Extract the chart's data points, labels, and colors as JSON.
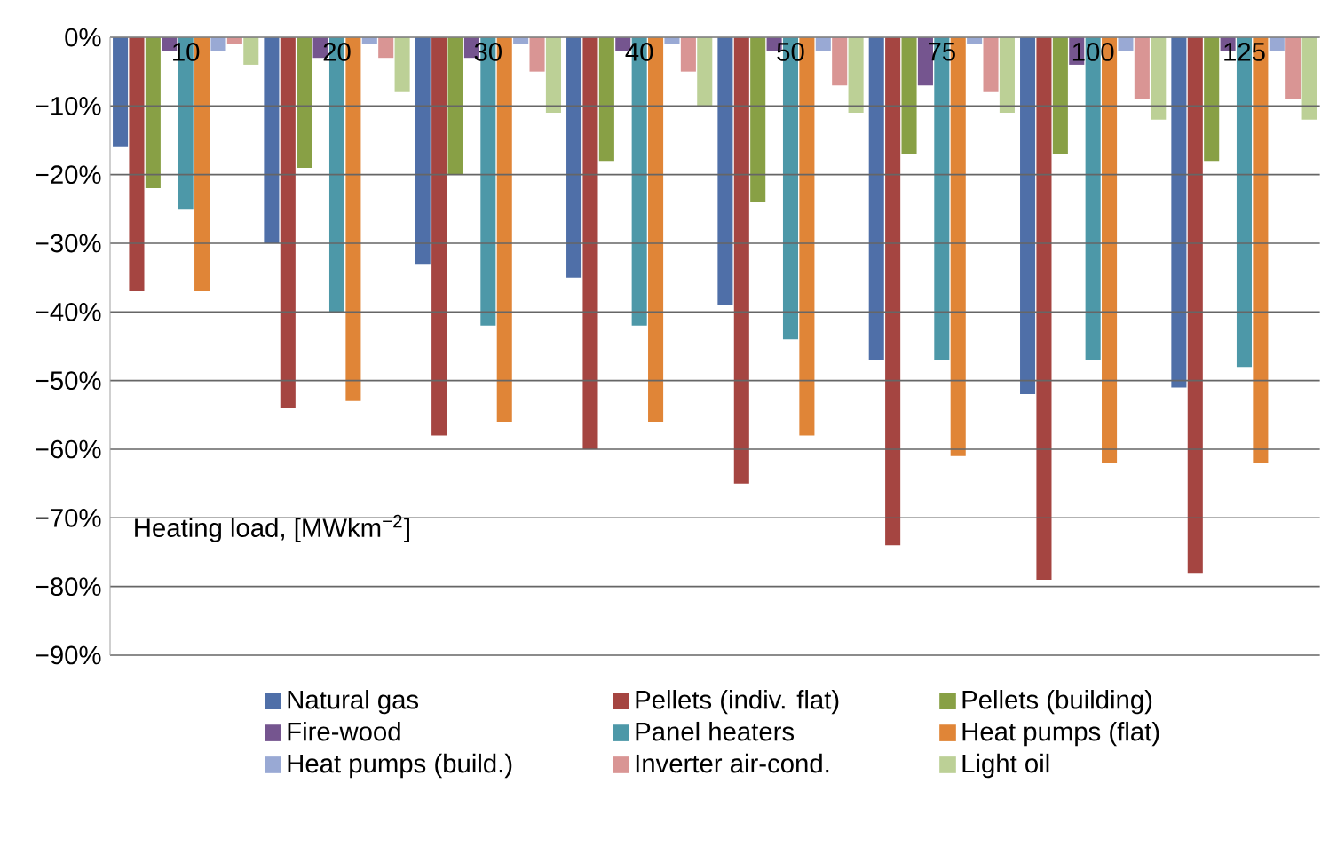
{
  "chart_data": {
    "type": "bar",
    "xlabel": "Heating load, [MWkm$^{−2}$]",
    "categories": [
      "10",
      "20",
      "30",
      "40",
      "50",
      "75",
      "100",
      "125"
    ],
    "series": [
      {
        "name": "Natural gas",
        "color": "#4f6fa8",
        "values": [
          -16,
          -30,
          -33,
          -35,
          -39,
          -47,
          -52,
          -51
        ]
      },
      {
        "name": "Pellets (indiv. flat)",
        "color": "#a54541",
        "values": [
          -37,
          -54,
          -58,
          -60,
          -65,
          -74,
          -79,
          -78
        ]
      },
      {
        "name": "Pellets (building)",
        "color": "#88a045",
        "values": [
          -22,
          -19,
          -20,
          -18,
          -24,
          -17,
          -17,
          -18
        ]
      },
      {
        "name": "Fire-wood",
        "color": "#75558f",
        "values": [
          -2,
          -3,
          -3,
          -2,
          -2,
          -7,
          -4,
          -2
        ]
      },
      {
        "name": "Panel heaters",
        "color": "#4d98a8",
        "values": [
          -25,
          -40,
          -42,
          -42,
          -44,
          -47,
          -47,
          -48
        ]
      },
      {
        "name": "Heat pumps (flat)",
        "color": "#e08537",
        "values": [
          -37,
          -53,
          -56,
          -56,
          -58,
          -61,
          -62,
          -62
        ]
      },
      {
        "name": "Heat pumps (build.)",
        "color": "#99a9d4",
        "values": [
          -2,
          -1,
          -1,
          -1,
          -2,
          -1,
          -2,
          -2
        ]
      },
      {
        "name": "Inverter air-cond.",
        "color": "#d99594",
        "values": [
          -1,
          -3,
          -5,
          -5,
          -7,
          -8,
          -9,
          -9
        ]
      },
      {
        "name": "Light oil",
        "color": "#bcd096",
        "values": [
          -4,
          -8,
          -11,
          -10,
          -11,
          -11,
          -12,
          -12
        ]
      }
    ],
    "ylim": [
      -90,
      0
    ],
    "yticks": [
      {
        "value": 0,
        "label": "0%"
      },
      {
        "value": -10,
        "label": "−10%"
      },
      {
        "value": -20,
        "label": "−20%"
      },
      {
        "value": -30,
        "label": "−30%"
      },
      {
        "value": -40,
        "label": "−40%"
      },
      {
        "value": -50,
        "label": "−50%"
      },
      {
        "value": -60,
        "label": "−60%"
      },
      {
        "value": -70,
        "label": "−70%"
      },
      {
        "value": -80,
        "label": "−80%"
      },
      {
        "value": -90,
        "label": "−90%"
      }
    ],
    "grid": "y",
    "legend": "bottom"
  }
}
